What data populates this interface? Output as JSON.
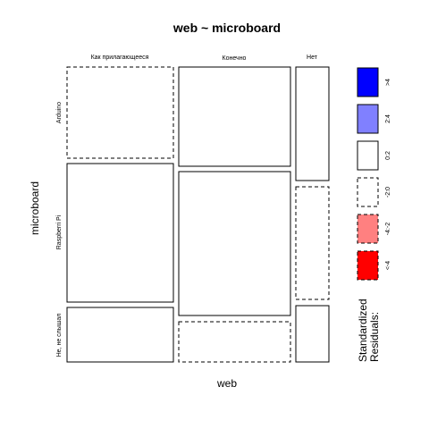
{
  "chart_data": {
    "type": "mosaic",
    "title": "web ~ microboard",
    "xlabel": "web",
    "ylabel": "microboard",
    "x_categories": [
      "Как прилагающееся",
      "Конечно",
      "Нет"
    ],
    "y_categories": [
      "Arduino",
      "Raspberri Pi",
      "Не, не слышал"
    ],
    "cells": [
      {
        "x": "Как прилагающееся",
        "y": "Arduino",
        "residual_band": "-2:0"
      },
      {
        "x": "Как прилагающееся",
        "y": "Raspberri Pi",
        "residual_band": "0:2"
      },
      {
        "x": "Как прилагающееся",
        "y": "Не, не слышал",
        "residual_band": "0:2"
      },
      {
        "x": "Конечно",
        "y": "Arduino",
        "residual_band": "0:2"
      },
      {
        "x": "Конечно",
        "y": "Raspberri Pi",
        "residual_band": "0:2"
      },
      {
        "x": "Конечно",
        "y": "Не, не слышал",
        "residual_band": "-2:0"
      },
      {
        "x": "Нет",
        "y": "Arduino",
        "residual_band": "0:2"
      },
      {
        "x": "Нет",
        "y": "Raspberri Pi",
        "residual_band": "-2:0"
      },
      {
        "x": "Нет",
        "y": "Не, не слышал",
        "residual_band": "0:2"
      }
    ],
    "legend": {
      "title": "Standardized Residuals:",
      "position": "right",
      "items": [
        {
          "label": ">4",
          "color": "#0000ff",
          "dashed": false
        },
        {
          "label": "2:4",
          "color": "#8080ff",
          "dashed": false
        },
        {
          "label": "0:2",
          "color": "#ffffff",
          "dashed": false
        },
        {
          "label": "-2:0",
          "color": "#ffffff",
          "dashed": true
        },
        {
          "label": "-4:-2",
          "color": "#ff8080",
          "dashed": true
        },
        {
          "label": "<-4",
          "color": "#ff0000",
          "dashed": true
        }
      ]
    }
  }
}
